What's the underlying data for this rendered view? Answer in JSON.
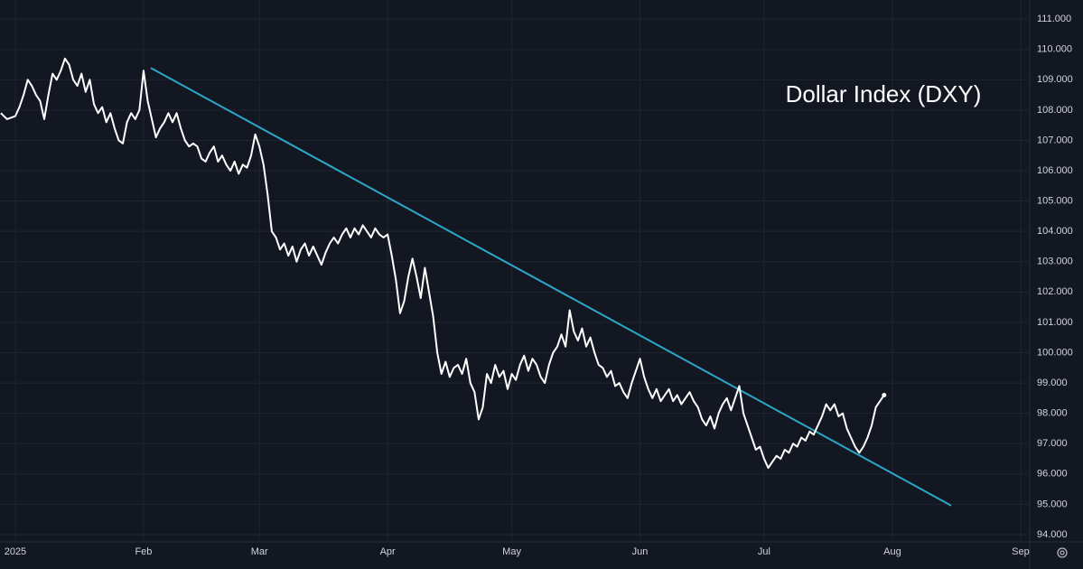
{
  "chart_data": {
    "type": "line",
    "title": "Dollar Index (DXY)",
    "background": "#131722",
    "grid": true,
    "grid_color": "#1f2430",
    "text_color": "#d1d4dc",
    "x": [
      -3.5,
      -2,
      0,
      1,
      2,
      3,
      4,
      5,
      6,
      7,
      8,
      9,
      10,
      11,
      12,
      13,
      14,
      15,
      16,
      17,
      18,
      19,
      20,
      21,
      22,
      23,
      24,
      25,
      26,
      27,
      28,
      29,
      30,
      31,
      32,
      33,
      34,
      35,
      36,
      37,
      38,
      39,
      40,
      41,
      42,
      43,
      44,
      45,
      46,
      47,
      48,
      49,
      50,
      51,
      52,
      53,
      54,
      55,
      56,
      57,
      58,
      59,
      60,
      61,
      62,
      63,
      64,
      65,
      66,
      67,
      68,
      69,
      70,
      71,
      72,
      73,
      74,
      75,
      76,
      77,
      78,
      79,
      80,
      81,
      82,
      83,
      84,
      85,
      86,
      87,
      88,
      89,
      90,
      91,
      92,
      93,
      94,
      95,
      96,
      97,
      98,
      99,
      100,
      101,
      102,
      103,
      104,
      105,
      106,
      107,
      108,
      109,
      110,
      111,
      112,
      113,
      114,
      115,
      116,
      117,
      118,
      119,
      120,
      121,
      122,
      123,
      124,
      125,
      126,
      127,
      128,
      129,
      130,
      131,
      132,
      133,
      134,
      135,
      136,
      137,
      138,
      139,
      140,
      141,
      142,
      143,
      144,
      145,
      146,
      147,
      148,
      149,
      150,
      151,
      152,
      153,
      154,
      155,
      156,
      157,
      158,
      159,
      160,
      161,
      162,
      163,
      164,
      165,
      166,
      167,
      168,
      169,
      170,
      171,
      172,
      173,
      174,
      175,
      176,
      177,
      178,
      179,
      180,
      181,
      182,
      183,
      184,
      185,
      186,
      187,
      188,
      189,
      190,
      191,
      192,
      193,
      194,
      195,
      196,
      197,
      198,
      199,
      200,
      201,
      202,
      203,
      204,
      205,
      206,
      207,
      208,
      209,
      210
    ],
    "series": [
      {
        "color": "#ffffff",
        "values": [
          107.9,
          107.7,
          107.8,
          108.1,
          108.5,
          109.0,
          108.8,
          108.5,
          108.3,
          107.7,
          108.5,
          109.2,
          109.0,
          109.3,
          109.7,
          109.5,
          109.0,
          108.8,
          109.2,
          108.6,
          109.0,
          108.2,
          107.9,
          108.1,
          107.6,
          107.9,
          107.4,
          107.0,
          106.9,
          107.6,
          107.9,
          107.7,
          108.0,
          109.3,
          108.3,
          107.7,
          107.1,
          107.4,
          107.6,
          107.9,
          107.6,
          107.9,
          107.4,
          107.0,
          106.8,
          106.9,
          106.8,
          106.4,
          106.3,
          106.6,
          106.8,
          106.3,
          106.5,
          106.2,
          106.0,
          106.3,
          105.9,
          106.2,
          106.1,
          106.5,
          107.2,
          106.8,
          106.2,
          105.2,
          104.0,
          103.8,
          103.4,
          103.6,
          103.2,
          103.5,
          103.0,
          103.4,
          103.6,
          103.2,
          103.5,
          103.2,
          102.9,
          103.3,
          103.6,
          103.8,
          103.6,
          103.9,
          104.1,
          103.8,
          104.1,
          103.9,
          104.2,
          104.0,
          103.8,
          104.1,
          103.9,
          103.8,
          103.9,
          103.2,
          102.4,
          101.3,
          101.7,
          102.5,
          103.1,
          102.5,
          101.8,
          102.8,
          102.0,
          101.2,
          100.0,
          99.3,
          99.7,
          99.2,
          99.5,
          99.6,
          99.3,
          99.8,
          99.0,
          98.7,
          97.8,
          98.2,
          99.3,
          99.0,
          99.6,
          99.2,
          99.4,
          98.8,
          99.3,
          99.1,
          99.6,
          99.9,
          99.4,
          99.8,
          99.6,
          99.2,
          99.0,
          99.6,
          100.0,
          100.2,
          100.6,
          100.2,
          101.4,
          100.7,
          100.4,
          100.8,
          100.2,
          100.5,
          100.0,
          99.6,
          99.5,
          99.2,
          99.4,
          98.9,
          99.0,
          98.7,
          98.5,
          99.0,
          99.4,
          99.8,
          99.2,
          98.8,
          98.5,
          98.8,
          98.4,
          98.6,
          98.8,
          98.4,
          98.6,
          98.3,
          98.5,
          98.7,
          98.4,
          98.2,
          97.8,
          97.6,
          97.9,
          97.5,
          98.0,
          98.3,
          98.5,
          98.1,
          98.5,
          98.9,
          98.0,
          97.6,
          97.2,
          96.8,
          96.9,
          96.5,
          96.2,
          96.4,
          96.6,
          96.5,
          96.8,
          96.7,
          97.0,
          96.9,
          97.2,
          97.1,
          97.4,
          97.3,
          97.6,
          97.9,
          98.3,
          98.1,
          98.3,
          97.9,
          98.0,
          97.5,
          97.2,
          96.9,
          96.7,
          96.9,
          97.2,
          97.6,
          98.2,
          98.4,
          98.6
        ]
      }
    ],
    "trendline": {
      "color": "#2ba8c8",
      "x": [
        32.75,
        226.2
      ],
      "values": [
        109.39,
        94.96
      ]
    },
    "xlim": [
      -3.7,
      245.2
    ],
    "xticks": [
      {
        "value": 0,
        "label": "2025"
      },
      {
        "value": 31,
        "label": "Feb"
      },
      {
        "value": 59,
        "label": "Mar"
      },
      {
        "value": 90,
        "label": "Apr"
      },
      {
        "value": 120,
        "label": "May"
      },
      {
        "value": 151,
        "label": "Jun"
      },
      {
        "value": 181,
        "label": "Jul"
      },
      {
        "value": 212,
        "label": "Aug"
      },
      {
        "value": 243,
        "label": "Sep"
      }
    ],
    "ylim": [
      93.76,
      111.63
    ],
    "yticks": [
      {
        "value": 94,
        "label": "94.000"
      },
      {
        "value": 95,
        "label": "95.000"
      },
      {
        "value": 96,
        "label": "96.000"
      },
      {
        "value": 97,
        "label": "97.000"
      },
      {
        "value": 98,
        "label": "98.000"
      },
      {
        "value": 99,
        "label": "99.000"
      },
      {
        "value": 100,
        "label": "100.000"
      },
      {
        "value": 101,
        "label": "101.000"
      },
      {
        "value": 102,
        "label": "102.000"
      },
      {
        "value": 103,
        "label": "103.000"
      },
      {
        "value": 104,
        "label": "104.000"
      },
      {
        "value": 105,
        "label": "105.000"
      },
      {
        "value": 106,
        "label": "106.000"
      },
      {
        "value": 107,
        "label": "107.000"
      },
      {
        "value": 108,
        "label": "108.000"
      },
      {
        "value": 109,
        "label": "109.000"
      },
      {
        "value": 110,
        "label": "110.000"
      },
      {
        "value": 111,
        "label": "111.000"
      }
    ]
  }
}
